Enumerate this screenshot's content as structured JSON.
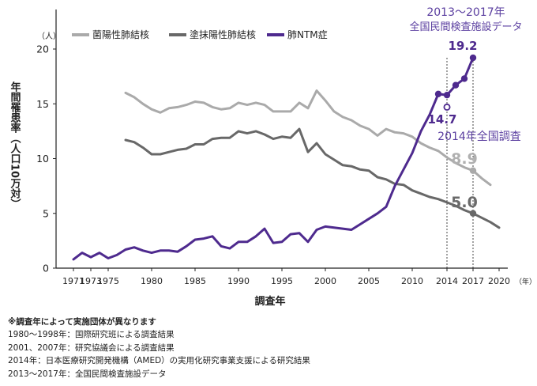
{
  "chart_data": {
    "type": "line",
    "ylabel": "年間罹患率（人口10万対）",
    "y_unit": "（人）",
    "xlabel": "調査年",
    "x_unit": "（年）",
    "ylim": [
      0,
      20
    ],
    "xlim": [
      1969,
      2021
    ],
    "y_ticks": [
      0,
      5,
      10,
      15,
      20
    ],
    "x_ticks": [
      1971,
      1973,
      1975,
      1980,
      1985,
      1990,
      1995,
      2000,
      2005,
      2010,
      2014,
      2017,
      2020
    ],
    "legend_position": "top-left",
    "series": [
      {
        "name": "菌陽性肺結核",
        "color": "#aaaaaa",
        "x": [
          1977,
          1978,
          1979,
          1980,
          1981,
          1982,
          1983,
          1984,
          1985,
          1986,
          1987,
          1988,
          1989,
          1990,
          1991,
          1992,
          1993,
          1994,
          1995,
          1996,
          1997,
          1998,
          1999,
          2000,
          2001,
          2002,
          2003,
          2004,
          2005,
          2006,
          2007,
          2008,
          2009,
          2010,
          2011,
          2012,
          2013,
          2014,
          2015,
          2016,
          2017,
          2018,
          2019
        ],
        "values": [
          16.0,
          15.6,
          15.0,
          14.5,
          14.2,
          14.6,
          14.7,
          14.9,
          15.2,
          15.1,
          14.7,
          14.5,
          14.6,
          15.1,
          14.9,
          15.1,
          14.9,
          14.3,
          14.3,
          14.3,
          15.1,
          14.6,
          16.2,
          15.3,
          14.3,
          13.8,
          13.5,
          13.0,
          12.7,
          12.1,
          12.7,
          12.4,
          12.3,
          12.0,
          11.4,
          11.0,
          10.7,
          10.1,
          9.6,
          9.2,
          8.9,
          8.2,
          7.6
        ]
      },
      {
        "name": "塗抹陽性肺結核",
        "color": "#686868",
        "x": [
          1977,
          1978,
          1979,
          1980,
          1981,
          1982,
          1983,
          1984,
          1985,
          1986,
          1987,
          1988,
          1989,
          1990,
          1991,
          1992,
          1993,
          1994,
          1995,
          1996,
          1997,
          1998,
          1999,
          2000,
          2001,
          2002,
          2003,
          2004,
          2005,
          2006,
          2007,
          2008,
          2009,
          2010,
          2011,
          2012,
          2013,
          2014,
          2015,
          2016,
          2017,
          2018,
          2019,
          2020
        ],
        "values": [
          11.7,
          11.5,
          11.0,
          10.4,
          10.4,
          10.6,
          10.8,
          10.9,
          11.3,
          11.3,
          11.8,
          11.9,
          11.9,
          12.5,
          12.3,
          12.5,
          12.2,
          11.8,
          12.0,
          11.9,
          12.7,
          10.6,
          11.4,
          10.4,
          9.9,
          9.4,
          9.3,
          9.0,
          8.9,
          8.3,
          8.1,
          7.7,
          7.6,
          7.1,
          6.8,
          6.5,
          6.3,
          6.0,
          5.7,
          5.3,
          5.0,
          4.6,
          4.2,
          3.7
        ]
      },
      {
        "name": "肺NTM症",
        "color": "#4e2a8e",
        "x": [
          1971,
          1972,
          1973,
          1974,
          1975,
          1976,
          1977,
          1978,
          1979,
          1980,
          1981,
          1982,
          1983,
          1984,
          1985,
          1986,
          1987,
          1988,
          1989,
          1990,
          1991,
          1992,
          1993,
          1994,
          1995,
          1996,
          1997,
          1998,
          1999,
          2000,
          2001,
          2002,
          2003,
          2004,
          2005,
          2006,
          2007,
          2008,
          2009,
          2010,
          2011,
          2012,
          2013,
          2014,
          2015,
          2016,
          2017
        ],
        "values": [
          0.8,
          1.4,
          1.0,
          1.4,
          0.9,
          1.2,
          1.7,
          1.9,
          1.6,
          1.4,
          1.6,
          1.6,
          1.5,
          2.0,
          2.6,
          2.7,
          2.9,
          2.0,
          1.8,
          2.4,
          2.4,
          2.9,
          3.6,
          2.3,
          2.4,
          3.1,
          3.2,
          2.4,
          3.5,
          3.8,
          3.7,
          3.6,
          3.5,
          4.0,
          4.5,
          5.0,
          5.6,
          7.5,
          9.0,
          10.5,
          12.5,
          14.0,
          15.9,
          15.8,
          16.7,
          17.3,
          19.2
        ]
      }
    ],
    "markers": [
      {
        "series": 2,
        "x": [
          2013,
          2014,
          2015,
          2016,
          2017
        ]
      },
      {
        "series": 0,
        "x": [
          2017
        ]
      },
      {
        "series": 1,
        "x": [
          2017
        ]
      }
    ],
    "open_point": {
      "x": 2014,
      "y": 14.7,
      "color": "#4e2a8e"
    },
    "vlines": [
      2014,
      2017
    ],
    "annotations": {
      "survey_range": [
        "2013～2017年",
        "全国民間検査施設データ"
      ],
      "ntm_2017": "19.2",
      "ntm_2014": "14.7",
      "survey_2014": "2014年全国調査",
      "bac_2017": "8.9",
      "smear_2017": "5.0"
    }
  },
  "notes": {
    "heading": "※調査年によって実施団体が異なります",
    "lines": [
      "1980～1998年：国際研究班による調査結果",
      "2001、2007年：研究協議会による調査結果",
      "2014年：日本医療研究開発機構（AMED）の実用化研究事業支援による研究結果",
      "2013～2017年：全国民間検査施設データ"
    ]
  }
}
